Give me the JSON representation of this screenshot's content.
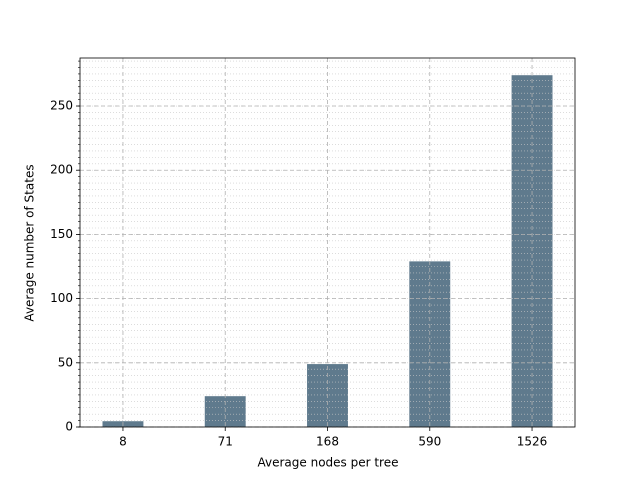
{
  "chart_data": {
    "type": "bar",
    "xlabel": "Average nodes per tree",
    "ylabel": "Average number of States",
    "categories": [
      "8",
      "71",
      "168",
      "590",
      "1526"
    ],
    "values": [
      4.5,
      24,
      49,
      129,
      274
    ],
    "color": "#5f7a8d",
    "ylim": [
      0,
      287.4
    ],
    "yticks": [
      0,
      50,
      100,
      150,
      200,
      250
    ],
    "grid": true
  }
}
